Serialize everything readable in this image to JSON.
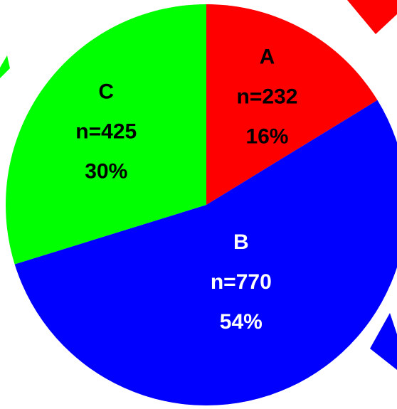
{
  "chart_data": {
    "type": "pie",
    "title": "",
    "legend": "none",
    "slices": [
      {
        "label": "A",
        "n": "n=232",
        "pct_label": "16%",
        "value": 232,
        "percent": 16,
        "color": "#ff0000",
        "text_color": "#000000"
      },
      {
        "label": "B",
        "n": "n=770",
        "pct_label": "54%",
        "value": 770,
        "percent": 54,
        "color": "#0000ff",
        "text_color": "#ffffff"
      },
      {
        "label": "C",
        "n": "n=425",
        "pct_label": "30%",
        "value": 425,
        "percent": 30,
        "color": "#00ff00",
        "text_color": "#000000"
      }
    ],
    "start_angle_deg": 0,
    "direction": "clockwise"
  },
  "colors": {
    "background": "#ffffff"
  }
}
